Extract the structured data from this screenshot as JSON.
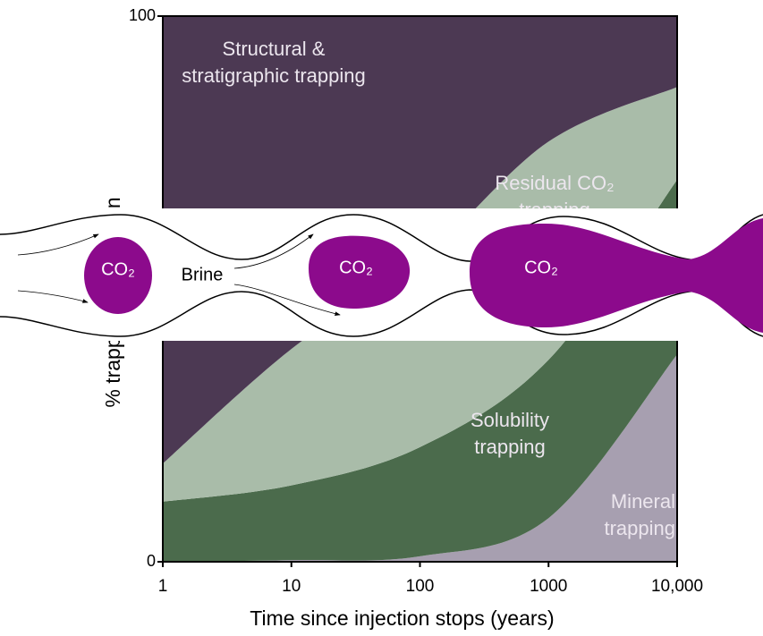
{
  "chart_data": {
    "type": "stacked_area",
    "x_label": "Time since injection stops (years)",
    "y_label": "% trapping contribution",
    "x": [
      1,
      10,
      100,
      1000,
      10000
    ],
    "xlim": [
      1,
      10000
    ],
    "log_x": true,
    "xticks": [
      1,
      10,
      100,
      1000,
      {
        "value": 10000,
        "label": "10,000"
      }
    ],
    "ylim": [
      0,
      100
    ],
    "yticks": [
      0,
      100
    ],
    "series": [
      {
        "name": "Mineral trapping",
        "color": "#a79fb0",
        "values": [
          0,
          0.3,
          1,
          8,
          38
        ]
      },
      {
        "name": "Solubility trapping",
        "color": "#4b6b4c",
        "values": [
          11,
          13.7,
          20,
          29,
          32
        ]
      },
      {
        "name": "Residual CO₂ trapping",
        "color": "#a9bca9",
        "values": [
          7,
          25,
          34,
          40,
          17
        ]
      },
      {
        "name": "Structural & stratigraphic trapping",
        "color": "#4c3953",
        "values": [
          82,
          61,
          45,
          23,
          13
        ]
      }
    ]
  },
  "diagram": {
    "blobs": [
      "CO₂",
      "CO₂",
      "CO₂"
    ],
    "fluid": "Brine"
  }
}
